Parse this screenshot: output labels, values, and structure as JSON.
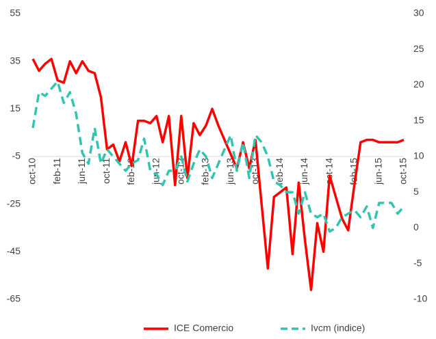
{
  "chart_data": {
    "type": "line",
    "categories": [
      "oct-10",
      null,
      null,
      null,
      "feb-11",
      null,
      null,
      null,
      "jun-11",
      null,
      null,
      null,
      "oct-11",
      null,
      null,
      null,
      "feb-12",
      null,
      null,
      null,
      "jun-12",
      null,
      null,
      null,
      "oct-12",
      null,
      null,
      null,
      "feb-13",
      null,
      null,
      null,
      "jun-13",
      null,
      null,
      null,
      "oct-13",
      null,
      null,
      null,
      "feb-14",
      null,
      null,
      null,
      "jun-14",
      null,
      null,
      null,
      "oct-14",
      null,
      null,
      null,
      "feb-15",
      null,
      null,
      null,
      "jun-15",
      null,
      null,
      null,
      "oct-15"
    ],
    "series": [
      {
        "name": "ICE Comercio",
        "color": "#ff0000",
        "dashed": false,
        "values": [
          36,
          31,
          34,
          36,
          27,
          26,
          35,
          30,
          35,
          31,
          30,
          20,
          -2,
          0,
          -7,
          1,
          -9,
          10,
          10,
          9,
          12,
          1,
          12,
          -17,
          12,
          -14,
          9,
          4,
          8,
          15,
          8,
          2,
          -4,
          -10,
          1,
          -10,
          2,
          -25,
          -52,
          -22,
          -20,
          -18,
          -46,
          -16,
          -40,
          -61,
          -33,
          -45,
          -13,
          -22,
          -31,
          -36,
          -17,
          1,
          2,
          2,
          1,
          1,
          1,
          1,
          2
        ]
      },
      {
        "name": "Ivcm (indice)",
        "color": "#33c4b0",
        "dashed": true,
        "axis": "y2",
        "values": [
          14,
          19,
          18.5,
          19.5,
          20.5,
          17.5,
          19,
          16,
          10.5,
          9,
          14,
          9,
          11,
          10,
          9,
          8,
          9,
          9.5,
          12.5,
          8,
          7.5,
          6,
          8,
          8,
          10,
          6.5,
          9,
          11,
          10,
          7,
          9,
          11,
          13,
          8,
          12,
          7,
          13,
          12,
          10,
          6.5,
          6,
          5,
          5,
          2,
          5,
          2,
          1.5,
          2,
          -0.5,
          0,
          1.5,
          2,
          2.5,
          1.5,
          3,
          0,
          3.5,
          3.5,
          3.5,
          2,
          3
        ]
      }
    ],
    "ylim": [
      -65,
      55
    ],
    "yticks": [
      -65,
      -45,
      -25,
      -5,
      15,
      35,
      55
    ],
    "y2lim": [
      -10,
      30
    ],
    "y2ticks": [
      -10,
      -5,
      0,
      5,
      10,
      15,
      20,
      25,
      30
    ],
    "x_axis_at": -5
  }
}
